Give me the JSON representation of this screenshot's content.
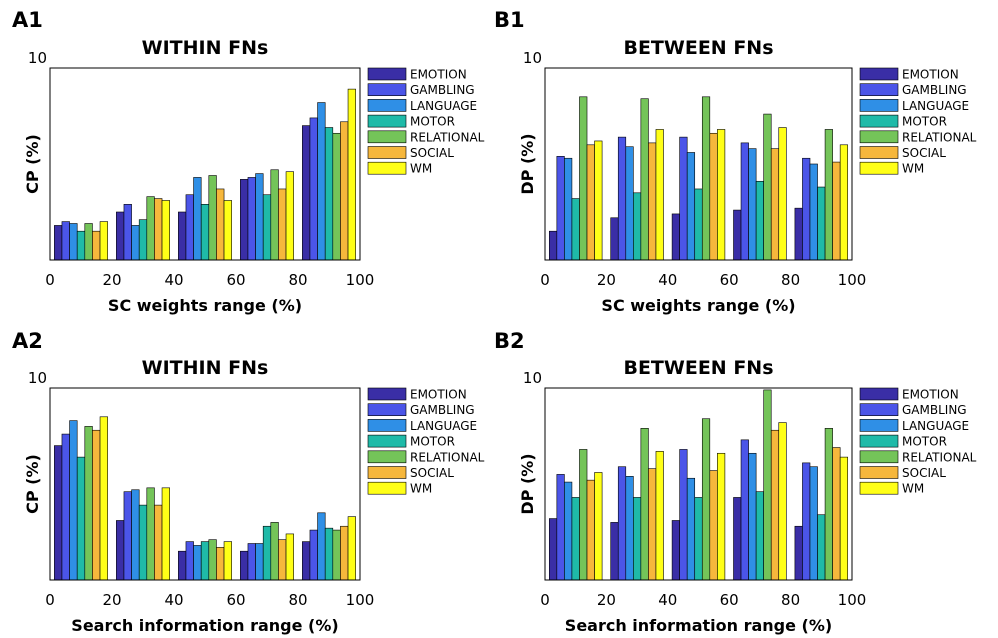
{
  "colors": {
    "EMOTION": "#3a2ea6",
    "GAMBLING": "#4b55e8",
    "LANGUAGE": "#2f8fe6",
    "MOTOR": "#1fbaa8",
    "RELATIONAL": "#74c459",
    "SOCIAL": "#f6b73c",
    "WM": "#ffff17"
  },
  "chart_data": [
    {
      "panel": "A1",
      "type": "bar",
      "title": "WITHIN FNs",
      "xlabel": "SC weights range (%)",
      "ylabel": "CP (%)",
      "ytop_label": "10",
      "xticks": [
        "0",
        "20",
        "40",
        "60",
        "80",
        "100"
      ],
      "xlim": [
        0,
        100
      ],
      "ylim": [
        0,
        10
      ],
      "legend_position": "right",
      "categories": [
        "0-20",
        "20-40",
        "40-60",
        "60-80",
        "80-100"
      ],
      "series": [
        {
          "name": "EMOTION",
          "values": [
            1.8,
            2.5,
            2.5,
            4.2,
            7.0
          ]
        },
        {
          "name": "GAMBLING",
          "values": [
            2.0,
            2.9,
            3.4,
            4.3,
            7.4
          ]
        },
        {
          "name": "LANGUAGE",
          "values": [
            1.9,
            1.8,
            4.3,
            4.5,
            8.2
          ]
        },
        {
          "name": "MOTOR",
          "values": [
            1.5,
            2.1,
            2.9,
            3.4,
            6.9
          ]
        },
        {
          "name": "RELATIONAL",
          "values": [
            1.9,
            3.3,
            4.4,
            4.7,
            6.6
          ]
        },
        {
          "name": "SOCIAL",
          "values": [
            1.5,
            3.2,
            3.7,
            3.7,
            7.2
          ]
        },
        {
          "name": "WM",
          "values": [
            2.0,
            3.1,
            3.1,
            4.6,
            8.9
          ]
        }
      ]
    },
    {
      "panel": "B1",
      "type": "bar",
      "title": "BETWEEN FNs",
      "xlabel": "SC weights range (%)",
      "ylabel": "DP (%)",
      "ytop_label": "10",
      "xticks": [
        "0",
        "20",
        "40",
        "60",
        "80",
        "100"
      ],
      "xlim": [
        0,
        100
      ],
      "ylim": [
        0,
        10
      ],
      "legend_position": "right",
      "categories": [
        "0-20",
        "20-40",
        "40-60",
        "60-80",
        "80-100"
      ],
      "series": [
        {
          "name": "EMOTION",
          "values": [
            1.5,
            2.2,
            2.4,
            2.6,
            2.7
          ]
        },
        {
          "name": "GAMBLING",
          "values": [
            5.4,
            6.4,
            6.4,
            6.1,
            5.3
          ]
        },
        {
          "name": "LANGUAGE",
          "values": [
            5.3,
            5.9,
            5.6,
            5.8,
            5.0
          ]
        },
        {
          "name": "MOTOR",
          "values": [
            3.2,
            3.5,
            3.7,
            4.1,
            3.8
          ]
        },
        {
          "name": "RELATIONAL",
          "values": [
            8.5,
            8.4,
            8.5,
            7.6,
            6.8
          ]
        },
        {
          "name": "SOCIAL",
          "values": [
            6.0,
            6.1,
            6.6,
            5.8,
            5.1
          ]
        },
        {
          "name": "WM",
          "values": [
            6.2,
            6.8,
            6.8,
            6.9,
            6.0
          ]
        }
      ]
    },
    {
      "panel": "A2",
      "type": "bar",
      "title": "WITHIN FNs",
      "xlabel": "Search information range (%)",
      "ylabel": "CP (%)",
      "ytop_label": "10",
      "xticks": [
        "0",
        "20",
        "40",
        "60",
        "80",
        "100"
      ],
      "xlim": [
        0,
        100
      ],
      "ylim": [
        0,
        10
      ],
      "legend_position": "right",
      "categories": [
        "0-20",
        "20-40",
        "40-60",
        "60-80",
        "80-100"
      ],
      "series": [
        {
          "name": "EMOTION",
          "values": [
            7.0,
            3.1,
            1.5,
            1.5,
            2.0
          ]
        },
        {
          "name": "GAMBLING",
          "values": [
            7.6,
            4.6,
            2.0,
            1.9,
            2.6
          ]
        },
        {
          "name": "LANGUAGE",
          "values": [
            8.3,
            4.7,
            1.8,
            1.9,
            3.5
          ]
        },
        {
          "name": "MOTOR",
          "values": [
            6.4,
            3.9,
            2.0,
            2.8,
            2.7
          ]
        },
        {
          "name": "RELATIONAL",
          "values": [
            8.0,
            4.8,
            2.1,
            3.0,
            2.6
          ]
        },
        {
          "name": "SOCIAL",
          "values": [
            7.8,
            3.9,
            1.7,
            2.1,
            2.8
          ]
        },
        {
          "name": "WM",
          "values": [
            8.5,
            4.8,
            2.0,
            2.4,
            3.3
          ]
        }
      ]
    },
    {
      "panel": "B2",
      "type": "bar",
      "title": "BETWEEN FNs",
      "xlabel": "Search information range (%)",
      "ylabel": "DP (%)",
      "ytop_label": "10",
      "xticks": [
        "0",
        "20",
        "40",
        "60",
        "80",
        "100"
      ],
      "xlim": [
        0,
        100
      ],
      "ylim": [
        0,
        10
      ],
      "legend_position": "right",
      "categories": [
        "0-20",
        "20-40",
        "40-60",
        "60-80",
        "80-100"
      ],
      "series": [
        {
          "name": "EMOTION",
          "values": [
            3.2,
            3.0,
            3.1,
            4.3,
            2.8
          ]
        },
        {
          "name": "GAMBLING",
          "values": [
            5.5,
            5.9,
            6.8,
            7.3,
            6.1
          ]
        },
        {
          "name": "LANGUAGE",
          "values": [
            5.1,
            5.4,
            5.3,
            6.6,
            5.9
          ]
        },
        {
          "name": "MOTOR",
          "values": [
            4.3,
            4.3,
            4.3,
            4.6,
            3.4
          ]
        },
        {
          "name": "RELATIONAL",
          "values": [
            6.8,
            7.9,
            8.4,
            9.9,
            7.9
          ]
        },
        {
          "name": "SOCIAL",
          "values": [
            5.2,
            5.8,
            5.7,
            7.8,
            6.9
          ]
        },
        {
          "name": "WM",
          "values": [
            5.6,
            6.7,
            6.6,
            8.2,
            6.4
          ]
        }
      ]
    }
  ]
}
